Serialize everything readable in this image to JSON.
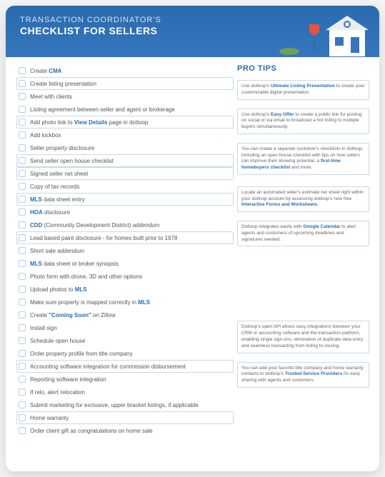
{
  "header": {
    "line1": "TRANSACTION COORDINATOR'S",
    "line2": "CHECKLIST FOR SELLERS",
    "bg_gradient": [
      "#2a6bb0",
      "#3576bc"
    ],
    "text_color_1": "#d5e4f2",
    "text_color_2": "#ffffff"
  },
  "palette": {
    "accent": "#2a6bb0",
    "checkbox_border": "#b9cfe4",
    "box_border": "#c5d9ed",
    "text": "#555555"
  },
  "checklist": [
    {
      "parts": [
        {
          "t": "Create "
        },
        {
          "t": "CMA",
          "b": true
        }
      ],
      "boxed": false
    },
    {
      "parts": [
        {
          "t": "Create listing presentation"
        }
      ],
      "boxed": true
    },
    {
      "parts": [
        {
          "t": "Meet with clients"
        }
      ],
      "boxed": false
    },
    {
      "parts": [
        {
          "t": "Listing agreement between seller and agent or brokerage"
        }
      ],
      "boxed": false
    },
    {
      "parts": [
        {
          "t": "Add photo link to "
        },
        {
          "t": "View Details",
          "b": true
        },
        {
          "t": " page in dotloop"
        }
      ],
      "boxed": true
    },
    {
      "parts": [
        {
          "t": "Add lockbox"
        }
      ],
      "boxed": false
    },
    {
      "parts": [
        {
          "t": "Seller property disclosure"
        }
      ],
      "boxed": false
    },
    {
      "parts": [
        {
          "t": "Send seller open house checklist"
        }
      ],
      "boxed": true
    },
    {
      "parts": [
        {
          "t": "Signed seller net sheet"
        }
      ],
      "boxed": true
    },
    {
      "parts": [
        {
          "t": "Copy of tax records"
        }
      ],
      "boxed": false
    },
    {
      "parts": [
        {
          "t": "MLS",
          "b": true
        },
        {
          "t": " data sheet entry"
        }
      ],
      "boxed": true
    },
    {
      "parts": [
        {
          "t": "HOA",
          "b": true
        },
        {
          "t": " disclosure"
        }
      ],
      "boxed": false
    },
    {
      "parts": [
        {
          "t": "CDD",
          "b": true
        },
        {
          "t": " (Community Development District) addendum"
        }
      ],
      "boxed": false
    },
    {
      "parts": [
        {
          "t": "Lead based paint disclosure - for homes built prior to 1978"
        }
      ],
      "boxed": true
    },
    {
      "parts": [
        {
          "t": "Short sale addendum"
        }
      ],
      "boxed": false
    },
    {
      "parts": [
        {
          "t": "MLS",
          "b": true
        },
        {
          "t": " data sheet or broker synopsis"
        }
      ],
      "boxed": false
    },
    {
      "parts": [
        {
          "t": "Photo form with drone, 3D and other options"
        }
      ],
      "boxed": false
    },
    {
      "parts": [
        {
          "t": "Upload photos to "
        },
        {
          "t": "MLS",
          "b": true
        }
      ],
      "boxed": false
    },
    {
      "parts": [
        {
          "t": "Make sure property is mapped correctly in "
        },
        {
          "t": "MLS",
          "b": true
        }
      ],
      "boxed": false
    },
    {
      "parts": [
        {
          "t": "Create "
        },
        {
          "t": "\"Coming Soon\"",
          "b": true
        },
        {
          "t": " on Zillow"
        }
      ],
      "boxed": false
    },
    {
      "parts": [
        {
          "t": "Install sign"
        }
      ],
      "boxed": false
    },
    {
      "parts": [
        {
          "t": "Schedule open house"
        }
      ],
      "boxed": false
    },
    {
      "parts": [
        {
          "t": "Order property profile from title company"
        }
      ],
      "boxed": false
    },
    {
      "parts": [
        {
          "t": "Accounting software integration for commission disbursement"
        }
      ],
      "boxed": true
    },
    {
      "parts": [
        {
          "t": "Reporting software integration"
        }
      ],
      "boxed": false
    },
    {
      "parts": [
        {
          "t": "If relo, alert relocation"
        }
      ],
      "boxed": false
    },
    {
      "parts": [
        {
          "t": "Submit marketing for exclusive, upper bracket listings, if applicable"
        }
      ],
      "boxed": false
    },
    {
      "parts": [
        {
          "t": "Home warranty"
        }
      ],
      "boxed": true
    },
    {
      "parts": [
        {
          "t": "Order client gift as congratulations on home sale"
        }
      ],
      "boxed": false
    }
  ],
  "protips_heading": "PRO TIPS",
  "tips": [
    {
      "parts": [
        {
          "t": "Use dotloop's "
        },
        {
          "t": "Ultimate Listing Presentation",
          "b": true
        },
        {
          "t": " to create your customizable digital presentation."
        }
      ],
      "mt": 0
    },
    {
      "parts": [
        {
          "t": "Use dotloop's "
        },
        {
          "t": "Easy Offer",
          "b": true
        },
        {
          "t": " to create a public link for posting on social or via email to broadcast a hot listing to multiple buyers simultaneously."
        }
      ],
      "mt": 8
    },
    {
      "parts": [
        {
          "t": "You can create a separate customer's checklists in dotloop, including an open house checklist with tips on how sellers can improve their showing potential, a "
        },
        {
          "t": "first-time homebuyers checklist",
          "b": true
        },
        {
          "t": " and more."
        }
      ],
      "mt": 8
    },
    {
      "parts": [
        {
          "t": "Locate an automated seller's estimate net sheet right within your dotloop account by accessing dotloop's new free "
        },
        {
          "t": "Interactive Forms and Worksheets",
          "b": true
        },
        {
          "t": "."
        }
      ],
      "mt": 16
    },
    {
      "parts": [
        {
          "t": "Dotloop integrates easily with "
        },
        {
          "t": "Google Calendar",
          "b": true
        },
        {
          "t": " to alert agents and customers of upcoming deadlines and signatures needed."
        }
      ],
      "mt": 6
    },
    {
      "parts": [
        {
          "t": "Dotloop's open API allows easy integrations between your CRM or accounting software and the transaction platform, enabling single sign-ons, elimination of duplicate data entry and seamless transacting from listing to closing."
        }
      ],
      "mt": 104
    },
    {
      "parts": [
        {
          "t": "You can add your favorite title company and home warranty contacts to dotloop's "
        },
        {
          "t": "Trusted Service Providers",
          "b": true
        },
        {
          "t": " for easy sharing with agents and customers."
        }
      ],
      "mt": 10
    }
  ]
}
